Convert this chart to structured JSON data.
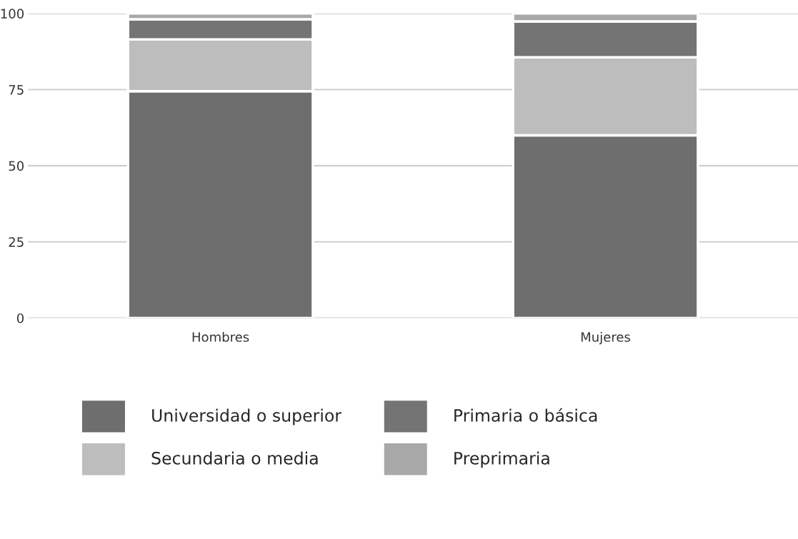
{
  "chart_data": {
    "type": "bar",
    "stacked": true,
    "categories": [
      "Hombres",
      "Mujeres"
    ],
    "series": [
      {
        "name": "Universidad o superior",
        "color": "#6e6e6e",
        "values": [
          74.5,
          60
        ]
      },
      {
        "name": "Secundaria o media",
        "color": "#bdbdbd",
        "values": [
          17,
          25.6
        ]
      },
      {
        "name": "Primaria o básica",
        "color": "#747474",
        "values": [
          6.6,
          11.8
        ]
      },
      {
        "name": "Preprimaria",
        "color": "#a8a8a8",
        "values": [
          1.9,
          2.6
        ]
      }
    ],
    "ylim": [
      0,
      100
    ],
    "yticks": [
      0,
      25,
      50,
      75,
      100
    ],
    "grid": "y",
    "legend": "bottom"
  }
}
